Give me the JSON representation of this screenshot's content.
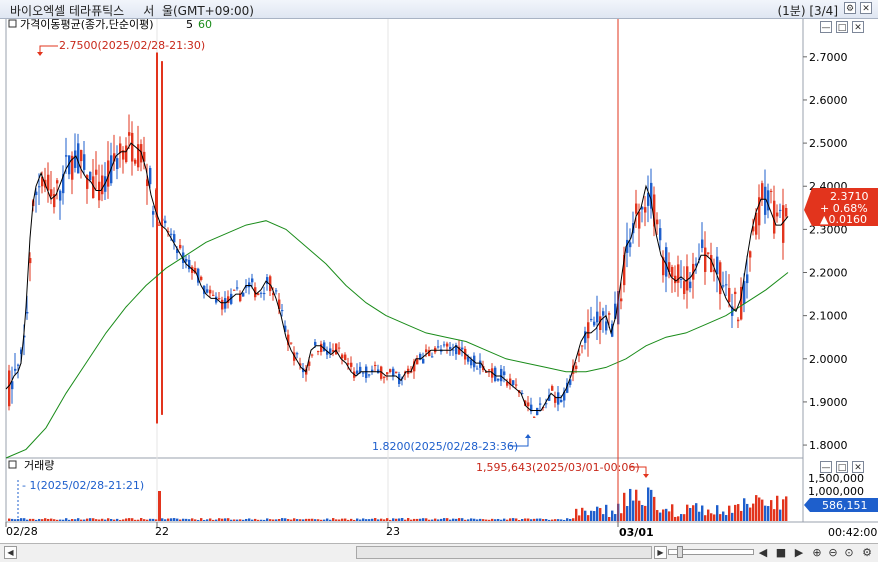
{
  "window": {
    "title": "바이오엑셀 테라퓨틱스     서  울(GMT+09:00)",
    "interval": "(1분) [3/4]"
  },
  "price_panel": {
    "indicator_label": "가격이동평균(종가,단순이평)",
    "ma_short": "5",
    "ma_long": "60",
    "high_annotation": "2.7500(2025/02/28-21:30)",
    "low_annotation": "1.8200(2025/02/28-23:36)",
    "last_price": "2.3710",
    "change_pct": "+ 0.68%",
    "change_abs": "▲0.0160"
  },
  "volume_panel": {
    "label": "거래량",
    "max_annotation": "1,595,643(2025/03/01-00:06)",
    "min_annotation": "1(2025/02/28-21:21)",
    "last_volume": "586,151",
    "axis_ticks": [
      "1,500,000",
      "1,000,000"
    ]
  },
  "colors": {
    "up": "#e2341d",
    "down": "#1e5fcc",
    "ma_short": "#000000",
    "ma_long": "#1a8c1a",
    "badge": "#e2341d"
  },
  "chart_data": {
    "type": "candlestick",
    "y_axis_ticks": [
      "2.7000",
      "2.6000",
      "2.5000",
      "2.4000",
      "2.3000",
      "2.2000",
      "2.1000",
      "2.0000",
      "1.9000",
      "1.8000"
    ],
    "ylim": [
      1.77,
      2.79
    ],
    "x_labels": [
      "02/28",
      "22",
      "23",
      "03/01"
    ],
    "time_end": "00:42:00",
    "ma_short_points": [
      [
        0,
        1.93
      ],
      [
        4,
        1.94
      ],
      [
        8,
        1.96
      ],
      [
        12,
        1.97
      ],
      [
        15,
        1.99
      ],
      [
        18,
        2.06
      ],
      [
        20,
        2.12
      ],
      [
        22,
        2.2
      ],
      [
        24,
        2.28
      ],
      [
        27,
        2.36
      ],
      [
        30,
        2.4
      ],
      [
        35,
        2.43
      ],
      [
        40,
        2.4
      ],
      [
        45,
        2.37
      ],
      [
        50,
        2.38
      ],
      [
        55,
        2.41
      ],
      [
        60,
        2.44
      ],
      [
        65,
        2.46
      ],
      [
        70,
        2.47
      ],
      [
        75,
        2.44
      ],
      [
        80,
        2.42
      ],
      [
        85,
        2.41
      ],
      [
        90,
        2.39
      ],
      [
        95,
        2.39
      ],
      [
        100,
        2.41
      ],
      [
        105,
        2.44
      ],
      [
        110,
        2.47
      ],
      [
        115,
        2.48
      ],
      [
        120,
        2.48
      ],
      [
        125,
        2.5
      ],
      [
        130,
        2.49
      ],
      [
        135,
        2.48
      ],
      [
        140,
        2.44
      ],
      [
        145,
        2.38
      ],
      [
        150,
        2.34
      ],
      [
        155,
        2.31
      ],
      [
        160,
        2.3
      ],
      [
        165,
        2.28
      ],
      [
        170,
        2.26
      ],
      [
        175,
        2.24
      ],
      [
        180,
        2.22
      ],
      [
        185,
        2.21
      ],
      [
        190,
        2.2
      ],
      [
        195,
        2.17
      ],
      [
        200,
        2.15
      ],
      [
        205,
        2.14
      ],
      [
        210,
        2.14
      ],
      [
        215,
        2.13
      ],
      [
        220,
        2.13
      ],
      [
        225,
        2.14
      ],
      [
        230,
        2.15
      ],
      [
        235,
        2.15
      ],
      [
        240,
        2.17
      ],
      [
        245,
        2.17
      ],
      [
        250,
        2.15
      ],
      [
        255,
        2.16
      ],
      [
        260,
        2.18
      ],
      [
        265,
        2.17
      ],
      [
        270,
        2.14
      ],
      [
        275,
        2.1
      ],
      [
        280,
        2.05
      ],
      [
        285,
        2.02
      ],
      [
        290,
        2.0
      ],
      [
        295,
        1.98
      ],
      [
        300,
        1.97
      ],
      [
        305,
        2.02
      ],
      [
        310,
        2.03
      ],
      [
        315,
        2.03
      ],
      [
        320,
        2.02
      ],
      [
        325,
        2.01
      ],
      [
        330,
        2.02
      ],
      [
        335,
        2.0
      ],
      [
        340,
        1.99
      ],
      [
        345,
        1.97
      ],
      [
        350,
        1.96
      ],
      [
        355,
        1.97
      ],
      [
        360,
        1.97
      ],
      [
        365,
        1.97
      ],
      [
        370,
        1.97
      ],
      [
        375,
        1.97
      ],
      [
        380,
        1.96
      ],
      [
        385,
        1.96
      ],
      [
        390,
        1.96
      ],
      [
        395,
        1.95
      ],
      [
        400,
        1.97
      ],
      [
        405,
        1.97
      ],
      [
        410,
        2.0
      ],
      [
        415,
        2.0
      ],
      [
        420,
        2.01
      ],
      [
        425,
        2.02
      ],
      [
        430,
        2.02
      ],
      [
        435,
        2.02
      ],
      [
        440,
        2.02
      ],
      [
        445,
        2.02
      ],
      [
        450,
        2.03
      ],
      [
        455,
        2.02
      ],
      [
        460,
        2.01
      ],
      [
        465,
        2.0
      ],
      [
        470,
        1.99
      ],
      [
        475,
        1.99
      ],
      [
        480,
        1.97
      ],
      [
        485,
        1.97
      ],
      [
        490,
        1.96
      ],
      [
        495,
        1.96
      ],
      [
        500,
        1.95
      ],
      [
        505,
        1.94
      ],
      [
        510,
        1.93
      ],
      [
        515,
        1.92
      ],
      [
        520,
        1.89
      ],
      [
        525,
        1.88
      ],
      [
        530,
        1.88
      ],
      [
        535,
        1.88
      ],
      [
        540,
        1.9
      ],
      [
        545,
        1.92
      ],
      [
        550,
        1.91
      ],
      [
        555,
        1.91
      ],
      [
        560,
        1.93
      ],
      [
        565,
        1.96
      ],
      [
        570,
        2.0
      ],
      [
        575,
        2.04
      ],
      [
        580,
        2.06
      ],
      [
        585,
        2.06
      ],
      [
        590,
        2.07
      ],
      [
        595,
        2.09
      ],
      [
        600,
        2.1
      ],
      [
        605,
        2.06
      ],
      [
        610,
        2.1
      ],
      [
        615,
        2.18
      ],
      [
        620,
        2.26
      ],
      [
        625,
        2.28
      ],
      [
        630,
        2.33
      ],
      [
        635,
        2.35
      ],
      [
        640,
        2.4
      ],
      [
        645,
        2.37
      ],
      [
        650,
        2.29
      ],
      [
        655,
        2.24
      ],
      [
        660,
        2.22
      ],
      [
        665,
        2.19
      ],
      [
        670,
        2.18
      ],
      [
        675,
        2.19
      ],
      [
        680,
        2.18
      ],
      [
        685,
        2.19
      ],
      [
        690,
        2.21
      ],
      [
        695,
        2.24
      ],
      [
        700,
        2.24
      ],
      [
        705,
        2.23
      ],
      [
        710,
        2.2
      ],
      [
        715,
        2.17
      ],
      [
        720,
        2.14
      ],
      [
        725,
        2.12
      ],
      [
        730,
        2.11
      ],
      [
        735,
        2.14
      ],
      [
        740,
        2.22
      ],
      [
        745,
        2.29
      ],
      [
        750,
        2.34
      ],
      [
        755,
        2.37
      ],
      [
        760,
        2.37
      ],
      [
        765,
        2.34
      ],
      [
        770,
        2.31
      ],
      [
        775,
        2.31
      ],
      [
        782,
        2.33
      ]
    ],
    "ma_long_points": [
      [
        0,
        1.77
      ],
      [
        20,
        1.79
      ],
      [
        40,
        1.84
      ],
      [
        60,
        1.92
      ],
      [
        80,
        1.99
      ],
      [
        100,
        2.06
      ],
      [
        120,
        2.12
      ],
      [
        140,
        2.17
      ],
      [
        160,
        2.21
      ],
      [
        180,
        2.24
      ],
      [
        200,
        2.27
      ],
      [
        220,
        2.29
      ],
      [
        240,
        2.31
      ],
      [
        260,
        2.32
      ],
      [
        280,
        2.3
      ],
      [
        300,
        2.26
      ],
      [
        320,
        2.22
      ],
      [
        340,
        2.17
      ],
      [
        360,
        2.13
      ],
      [
        380,
        2.1
      ],
      [
        400,
        2.08
      ],
      [
        420,
        2.06
      ],
      [
        440,
        2.05
      ],
      [
        460,
        2.04
      ],
      [
        480,
        2.02
      ],
      [
        500,
        2.0
      ],
      [
        520,
        1.99
      ],
      [
        540,
        1.98
      ],
      [
        560,
        1.97
      ],
      [
        580,
        1.97
      ],
      [
        600,
        1.98
      ],
      [
        620,
        2.0
      ],
      [
        640,
        2.03
      ],
      [
        660,
        2.05
      ],
      [
        680,
        2.06
      ],
      [
        700,
        2.08
      ],
      [
        720,
        2.1
      ],
      [
        740,
        2.13
      ],
      [
        760,
        2.16
      ],
      [
        782,
        2.2
      ]
    ]
  }
}
